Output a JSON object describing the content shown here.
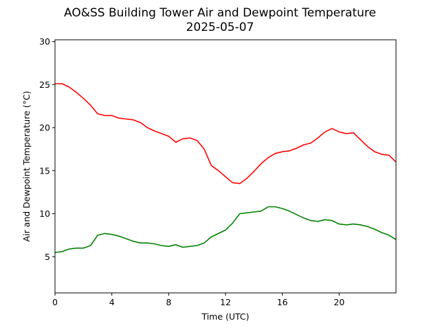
{
  "chart_data": {
    "type": "line",
    "title": "AO&SS Building Tower Air and Dewpoint Temperature",
    "subtitle": "2025-05-07",
    "xlabel": "Time (UTC)",
    "ylabel": "Air and Dewpoint Temperature (°C)",
    "xlim": [
      0,
      24
    ],
    "ylim": [
      0.8,
      30.2
    ],
    "xticks": [
      0,
      4,
      8,
      12,
      16,
      20
    ],
    "yticks": [
      5,
      10,
      15,
      20,
      25,
      30
    ],
    "grid": false,
    "series": [
      {
        "color": "#ff0000",
        "x": [
          0,
          0.5,
          1,
          1.5,
          2,
          2.5,
          3,
          3.5,
          4,
          4.5,
          5,
          5.5,
          6,
          6.5,
          7,
          7.5,
          8,
          8.5,
          9,
          9.5,
          10,
          10.5,
          11,
          11.5,
          12,
          12.5,
          13,
          13.5,
          14,
          14.5,
          15,
          15.5,
          16,
          16.5,
          17,
          17.5,
          18,
          18.5,
          19,
          19.5,
          20,
          20.5,
          21,
          21.5,
          22,
          22.5,
          23,
          23.5,
          24
        ],
        "values": [
          25.1,
          25.1,
          24.7,
          24.1,
          23.4,
          22.6,
          21.6,
          21.4,
          21.4,
          21.1,
          21.0,
          20.9,
          20.6,
          20.0,
          19.6,
          19.3,
          19.0,
          18.3,
          18.7,
          18.8,
          18.5,
          17.5,
          15.6,
          15.0,
          14.3,
          13.6,
          13.5,
          14.1,
          14.9,
          15.8,
          16.5,
          17.0,
          17.2,
          17.3,
          17.6,
          18.0,
          18.2,
          18.8,
          19.5,
          19.9,
          19.5,
          19.3,
          19.4,
          18.6,
          17.8,
          17.2,
          16.9,
          16.8,
          16.0
        ]
      },
      {
        "color": "#008000",
        "x": [
          0,
          0.5,
          1,
          1.5,
          2,
          2.5,
          3,
          3.5,
          4,
          4.5,
          5,
          5.5,
          6,
          6.5,
          7,
          7.5,
          8,
          8.5,
          9,
          9.5,
          10,
          10.5,
          11,
          11.5,
          12,
          12.5,
          13,
          13.5,
          14,
          14.5,
          15,
          15.5,
          16,
          16.5,
          17,
          17.5,
          18,
          18.5,
          19,
          19.5,
          20,
          20.5,
          21,
          21.5,
          22,
          22.5,
          23,
          23.5,
          24
        ],
        "values": [
          5.5,
          5.6,
          5.9,
          6.0,
          6.0,
          6.3,
          7.5,
          7.7,
          7.6,
          7.4,
          7.1,
          6.8,
          6.6,
          6.6,
          6.5,
          6.3,
          6.2,
          6.4,
          6.1,
          6.2,
          6.3,
          6.6,
          7.3,
          7.7,
          8.1,
          8.9,
          10.0,
          10.1,
          10.2,
          10.3,
          10.8,
          10.8,
          10.6,
          10.3,
          9.9,
          9.5,
          9.2,
          9.1,
          9.3,
          9.2,
          8.8,
          8.7,
          8.8,
          8.7,
          8.5,
          8.2,
          7.8,
          7.5,
          7.0
        ]
      }
    ]
  }
}
